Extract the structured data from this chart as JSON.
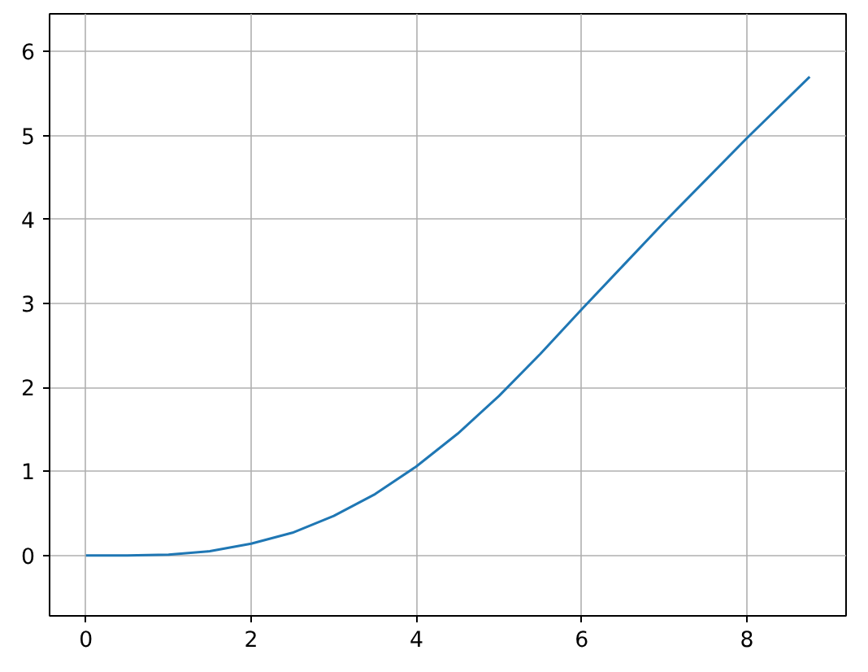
{
  "chart_data": {
    "type": "line",
    "x": [
      0,
      0.5,
      1,
      1.5,
      2,
      2.5,
      3,
      3.5,
      4,
      4.5,
      5,
      5.5,
      6,
      6.5,
      7,
      7.5,
      8,
      8.76
    ],
    "series": [
      {
        "color": "#1f77b4",
        "values": [
          0,
          0,
          0.01,
          0.05,
          0.14,
          0.27,
          0.47,
          0.73,
          1.06,
          1.45,
          1.9,
          2.4,
          2.93,
          3.45,
          3.97,
          4.47,
          4.97,
          5.7
        ]
      }
    ],
    "xlim": [
      -0.44,
      9.2
    ],
    "ylim": [
      -0.72,
      6.45
    ],
    "xticks": [
      0,
      2,
      4,
      6,
      8
    ],
    "yticks": [
      0,
      1,
      2,
      3,
      4,
      5,
      6
    ],
    "grid": true
  }
}
